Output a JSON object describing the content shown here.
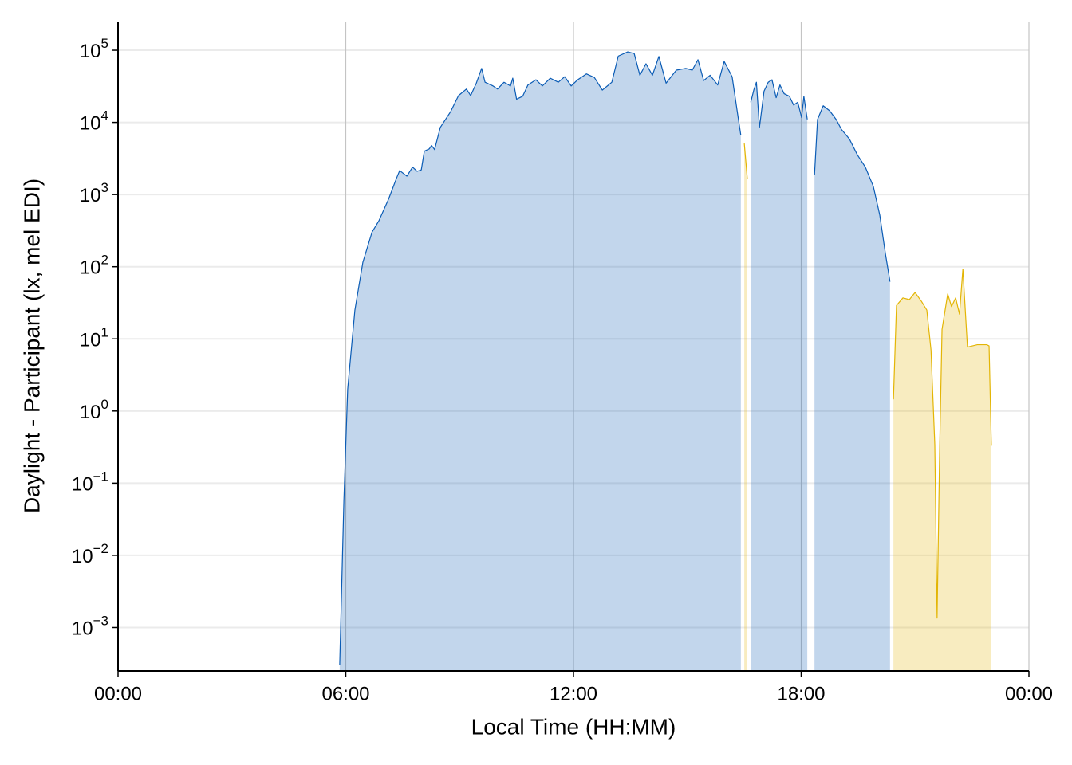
{
  "chart_data": {
    "type": "area",
    "xlabel": "Local Time (HH:MM)",
    "ylabel": "Daylight - Participant (lx, mel EDI)",
    "xlim": [
      0,
      24
    ],
    "xticks": [
      {
        "value": 0,
        "label": "00:00"
      },
      {
        "value": 6,
        "label": "06:00"
      },
      {
        "value": 12,
        "label": "12:00"
      },
      {
        "value": 18,
        "label": "18:00"
      },
      {
        "value": 24,
        "label": "00:00"
      }
    ],
    "ylim": [
      0.00025,
      250000
    ],
    "yscale": "log",
    "yticks": [
      {
        "value": 0.001,
        "label": "10",
        "exponent": "−3"
      },
      {
        "value": 0.01,
        "label": "10",
        "exponent": "−2"
      },
      {
        "value": 0.1,
        "label": "10",
        "exponent": "−1"
      },
      {
        "value": 1,
        "label": "10",
        "exponent": "0"
      },
      {
        "value": 10,
        "label": "10",
        "exponent": "1"
      },
      {
        "value": 100,
        "label": "10",
        "exponent": "2"
      },
      {
        "value": 1000,
        "label": "10",
        "exponent": "3"
      },
      {
        "value": 10000,
        "label": "10",
        "exponent": "4"
      },
      {
        "value": 100000,
        "label": "10",
        "exponent": "5"
      }
    ],
    "grid": true,
    "series": [
      {
        "color": "#0b5cb5",
        "x": [
          5.84,
          5.95,
          6.05,
          6.24,
          6.45,
          6.69,
          6.87,
          7.13,
          7.33,
          7.42,
          7.61,
          7.76,
          7.88,
          7.99,
          8.07,
          8.2,
          8.26,
          8.34,
          8.49,
          8.76,
          8.97,
          9.18,
          9.29,
          9.44,
          9.58,
          9.67,
          9.88,
          10.0,
          10.17,
          10.34,
          10.4,
          10.5,
          10.66,
          10.8,
          11.01,
          11.18,
          11.39,
          11.6,
          11.77,
          11.94,
          12.11,
          12.34,
          12.55,
          12.76,
          13.01,
          13.18,
          13.43,
          13.6,
          13.75,
          13.91,
          14.08,
          14.25,
          14.44,
          14.71,
          14.96,
          15.13,
          15.28,
          15.43,
          15.6,
          15.8,
          15.97,
          16.18,
          16.33,
          16.41,
          16.54,
          16.67,
          16.75,
          16.82,
          16.9,
          17.02,
          17.13,
          17.23,
          17.34,
          17.44,
          17.55,
          17.69,
          17.8,
          17.91,
          18.01,
          18.07,
          18.16,
          18.26,
          18.35,
          18.43,
          18.58,
          18.75,
          18.92,
          19.06,
          19.27,
          19.48,
          19.69,
          19.9,
          20.07,
          20.22,
          20.34
        ],
        "values": [
          0.0003,
          0.057,
          2,
          25,
          115,
          300,
          430,
          870,
          1650,
          2150,
          1800,
          2400,
          2100,
          2200,
          4000,
          4300,
          4800,
          4200,
          8500,
          14000,
          23500,
          29000,
          23500,
          35000,
          56000,
          36000,
          32000,
          29000,
          36000,
          32000,
          41000,
          21000,
          23000,
          33000,
          39000,
          32000,
          41000,
          36000,
          43000,
          32000,
          39000,
          47000,
          42000,
          28000,
          36000,
          83000,
          95000,
          90000,
          45000,
          65000,
          45000,
          82000,
          35000,
          53000,
          56000,
          53000,
          74000,
          38000,
          45000,
          33000,
          70000,
          43000,
          12500,
          6600,
          null,
          19000,
          28000,
          36000,
          8500,
          27000,
          36000,
          39000,
          22000,
          33000,
          25000,
          23000,
          17400,
          19000,
          11700,
          23000,
          11000,
          null,
          1860,
          11000,
          17000,
          14500,
          11000,
          8000,
          5900,
          3550,
          2400,
          1300,
          520,
          150,
          62
        ]
      },
      {
        "color": "#e3b505",
        "x": [
          16.5,
          16.58,
          16.62,
          20.43,
          20.51,
          20.68,
          20.85,
          21.0,
          21.17,
          21.31,
          21.42,
          21.52,
          21.58,
          21.65,
          21.71,
          21.86,
          21.96,
          22.07,
          22.17,
          22.26,
          22.38,
          22.64,
          22.89,
          22.95,
          23.01
        ],
        "values": [
          5100,
          1650,
          null,
          1.45,
          29,
          37,
          35,
          44,
          33,
          25,
          7,
          0.34,
          0.00135,
          0.34,
          13.5,
          42,
          28,
          37,
          22,
          93,
          7.7,
          8.3,
          8.3,
          8,
          0.33
        ]
      }
    ]
  }
}
